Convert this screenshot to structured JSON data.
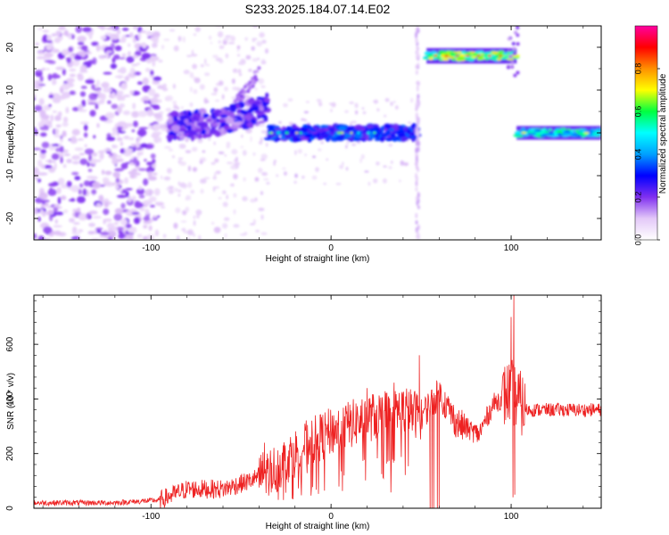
{
  "chart_data": [
    {
      "type": "heatmap",
      "title": "S233.2025.184.07.14.E02",
      "xlabel": "Height of straight line (km)",
      "ylabel": "Frequency (Hz)",
      "xlim": [
        -165,
        150
      ],
      "ylim": [
        -25,
        25
      ],
      "x_ticks": [
        -100,
        0,
        100
      ],
      "y_ticks": [
        20,
        10,
        0,
        -10,
        -20
      ],
      "colorbar": {
        "label": "Normalized spectral amplitude",
        "range": [
          0.0,
          1.0
        ],
        "ticks": [
          "0.0",
          "0.2",
          "0.4",
          "0.6",
          "0.8"
        ],
        "tick_values": [
          0.0,
          0.2,
          0.4,
          0.6,
          0.8
        ],
        "colormap": [
          "#ffffff",
          "#e3c8f8",
          "#8030f0",
          "#0000ff",
          "#00a0ff",
          "#00ffff",
          "#00ff40",
          "#ffff00",
          "#ff9000",
          "#ff0000",
          "#ff00a0"
        ]
      },
      "features": [
        {
          "name": "noise",
          "x_range": [
            -165,
            -95
          ],
          "freq_range": [
            -25,
            25
          ],
          "amplitude": 0.05
        },
        {
          "name": "band_rising",
          "x_range": [
            -90,
            -35
          ],
          "freq_start": 1.5,
          "freq_end": 6,
          "amplitude": 0.22
        },
        {
          "name": "band_zero",
          "x_range": [
            -35,
            48
          ],
          "freq": 0,
          "amplitude": 0.35
        },
        {
          "name": "vertical_line",
          "x": 48,
          "freq_range": [
            -25,
            25
          ],
          "amplitude": 0.1
        },
        {
          "name": "band_high",
          "x_range": [
            53,
            103
          ],
          "freq": 18,
          "amplitude": 0.75
        },
        {
          "name": "band_low",
          "x_range": [
            103,
            150
          ],
          "freq": 0,
          "amplitude": 0.55
        }
      ]
    },
    {
      "type": "line",
      "xlabel": "Height of straight line (km)",
      "ylabel": "SNR (10 * v/v)",
      "xlim": [
        -165,
        150
      ],
      "ylim": [
        0,
        780
      ],
      "x_ticks": [
        -100,
        0,
        100
      ],
      "y_ticks": [
        0,
        200,
        400,
        600
      ],
      "color": "#ee2222",
      "trend": [
        {
          "x": -165,
          "y": 20
        },
        {
          "x": -120,
          "y": 20
        },
        {
          "x": -95,
          "y": 30
        },
        {
          "x": -80,
          "y": 70
        },
        {
          "x": -60,
          "y": 70
        },
        {
          "x": -45,
          "y": 100
        },
        {
          "x": -30,
          "y": 150
        },
        {
          "x": -15,
          "y": 230
        },
        {
          "x": 0,
          "y": 280
        },
        {
          "x": 20,
          "y": 330
        },
        {
          "x": 40,
          "y": 360
        },
        {
          "x": 50,
          "y": 340
        },
        {
          "x": 60,
          "y": 420
        },
        {
          "x": 70,
          "y": 310
        },
        {
          "x": 82,
          "y": 270
        },
        {
          "x": 90,
          "y": 380
        },
        {
          "x": 100,
          "y": 430
        },
        {
          "x": 108,
          "y": 360
        },
        {
          "x": 150,
          "y": 360
        }
      ],
      "spikes": [
        {
          "x": -37,
          "y": 240
        },
        {
          "x": 20,
          "y": 440
        },
        {
          "x": 35,
          "y": 460
        },
        {
          "x": 49,
          "y": 560
        },
        {
          "x": 100,
          "y": 700
        },
        {
          "x": 101.5,
          "y": 780
        }
      ],
      "dips": [
        {
          "x": 55,
          "y": 0
        },
        {
          "x": 56,
          "y": 0
        },
        {
          "x": 57,
          "y": 0
        },
        {
          "x": 59,
          "y": 0
        },
        {
          "x": 60,
          "y": 0
        },
        {
          "x": 101,
          "y": 40
        },
        {
          "x": 102,
          "y": 50
        }
      ]
    }
  ]
}
